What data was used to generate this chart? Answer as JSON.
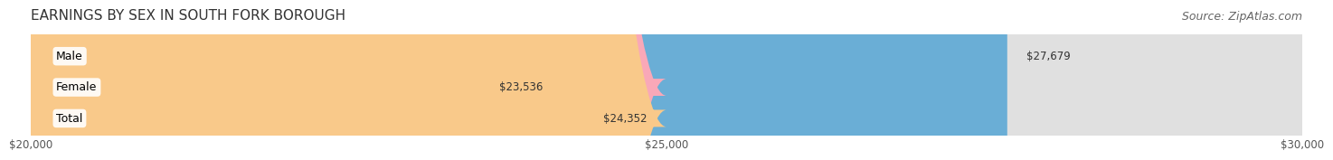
{
  "title": "EARNINGS BY SEX IN SOUTH FORK BOROUGH",
  "source": "Source: ZipAtlas.com",
  "categories": [
    "Male",
    "Female",
    "Total"
  ],
  "values": [
    27679,
    23536,
    24352
  ],
  "bar_colors": [
    "#6aaed6",
    "#f9a8b8",
    "#f9c98a"
  ],
  "value_labels": [
    "$27,679",
    "$23,536",
    "$24,352"
  ],
  "bar_bg_color": "#e0e0e0",
  "xmin": 20000,
  "xmax": 30000,
  "xticks": [
    20000,
    25000,
    30000
  ],
  "xtick_labels": [
    "$20,000",
    "$25,000",
    "$30,000"
  ],
  "background_color": "#ffffff",
  "title_fontsize": 11,
  "source_fontsize": 9
}
